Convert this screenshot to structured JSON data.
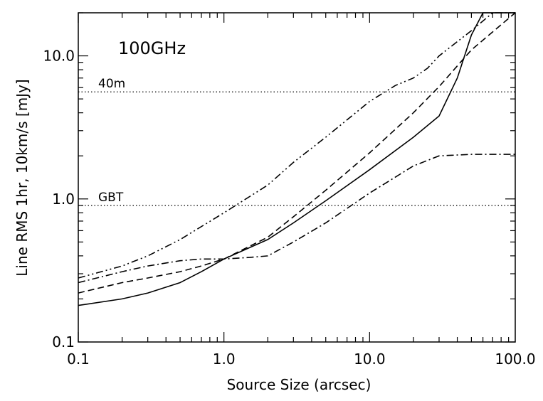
{
  "chart_data": {
    "type": "line",
    "title": "100GHz",
    "xlabel": "Source Size (arcsec)",
    "ylabel": "Line RMS 1hr, 10km/s [mJy]",
    "xscale": "log",
    "yscale": "log",
    "xlim": [
      0.1,
      100.0
    ],
    "ylim": [
      0.1,
      20.0
    ],
    "xticks": [
      {
        "value": 0.1,
        "label": "0.1"
      },
      {
        "value": 1.0,
        "label": "1.0"
      },
      {
        "value": 10.0,
        "label": "10.0"
      },
      {
        "value": 100.0,
        "label": "100.0"
      }
    ],
    "yticks": [
      {
        "value": 0.1,
        "label": "0.1"
      },
      {
        "value": 1.0,
        "label": "1.0"
      },
      {
        "value": 10.0,
        "label": "10.0"
      }
    ],
    "reference_lines": [
      {
        "name": "40m",
        "value": 5.6,
        "style": "dotted"
      },
      {
        "name": "GBT",
        "value": 0.9,
        "style": "dotted"
      }
    ],
    "series": [
      {
        "name": "solid",
        "style": "solid",
        "x": [
          0.1,
          0.2,
          0.3,
          0.5,
          0.7,
          1.0,
          2.0,
          3.0,
          5.0,
          10.0,
          20.0,
          30.0,
          40.0,
          50.0,
          60.0,
          100.0
        ],
        "y": [
          0.18,
          0.2,
          0.22,
          0.26,
          0.31,
          0.38,
          0.52,
          0.68,
          0.97,
          1.6,
          2.7,
          3.8,
          7.0,
          14.0,
          20.0,
          20.0
        ]
      },
      {
        "name": "dashed",
        "style": "dashed",
        "x": [
          0.1,
          0.2,
          0.3,
          0.5,
          0.7,
          1.0,
          2.0,
          3.0,
          5.0,
          10.0,
          20.0,
          30.0,
          50.0,
          100.0
        ],
        "y": [
          0.22,
          0.26,
          0.28,
          0.31,
          0.34,
          0.38,
          0.54,
          0.75,
          1.15,
          2.1,
          4.0,
          6.1,
          11.0,
          20.0
        ]
      },
      {
        "name": "dash-dot",
        "style": "dash-dot",
        "x": [
          0.1,
          0.2,
          0.3,
          0.5,
          0.7,
          1.0,
          1.5,
          2.0,
          3.0,
          5.0,
          10.0,
          20.0,
          30.0,
          50.0,
          100.0
        ],
        "y": [
          0.26,
          0.31,
          0.34,
          0.37,
          0.38,
          0.38,
          0.39,
          0.4,
          0.5,
          0.68,
          1.1,
          1.7,
          2.0,
          2.05,
          2.05
        ]
      },
      {
        "name": "dash-dot-dot",
        "style": "dash-dot-dot",
        "x": [
          0.1,
          0.2,
          0.3,
          0.5,
          1.0,
          2.0,
          3.0,
          5.0,
          10.0,
          15.0,
          20.0,
          25.0,
          30.0,
          50.0,
          70.0,
          100.0
        ],
        "y": [
          0.28,
          0.34,
          0.4,
          0.52,
          0.8,
          1.25,
          1.8,
          2.7,
          4.8,
          6.2,
          7.0,
          8.2,
          10.0,
          15.0,
          20.0,
          20.0
        ]
      }
    ]
  }
}
